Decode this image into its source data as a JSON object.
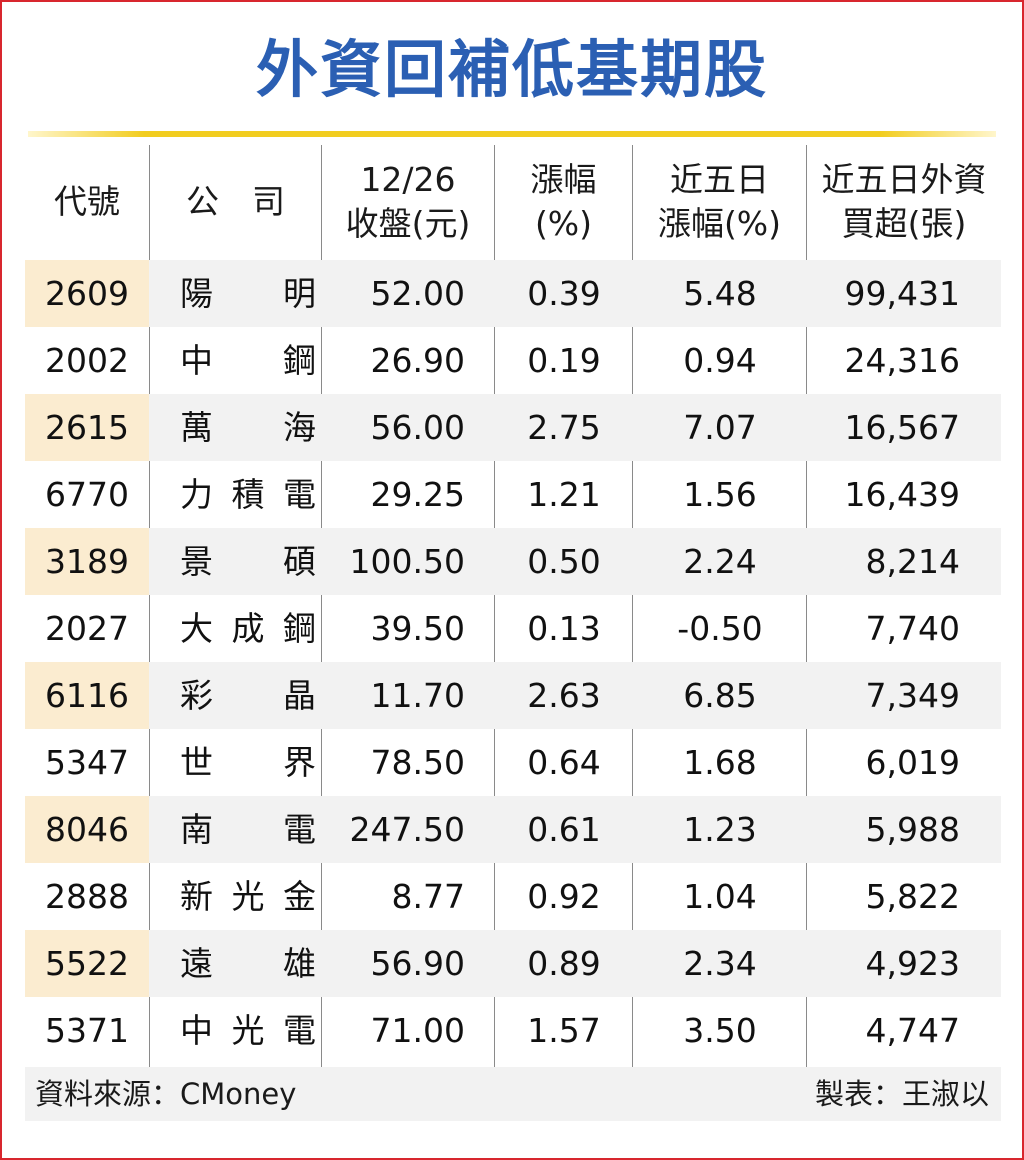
{
  "title": "外資回補低基期股",
  "headers": {
    "code": "代號",
    "name": "公　司",
    "close_l1": "12/26",
    "close_l2": "收盤(元)",
    "chg_l1": "漲幅",
    "chg_l2": "(%)",
    "chg5_l1": "近五日",
    "chg5_l2": "漲幅(%)",
    "buy_l1": "近五日外資",
    "buy_l2": "買超(張)"
  },
  "rows": [
    {
      "code": "2609",
      "name": "陽　明",
      "close": "52.00",
      "chg": "0.39",
      "chg5": "5.48",
      "buy": "99,431"
    },
    {
      "code": "2002",
      "name": "中　鋼",
      "close": "26.90",
      "chg": "0.19",
      "chg5": "0.94",
      "buy": "24,316"
    },
    {
      "code": "2615",
      "name": "萬　海",
      "close": "56.00",
      "chg": "2.75",
      "chg5": "7.07",
      "buy": "16,567"
    },
    {
      "code": "6770",
      "name": "力積電",
      "close": "29.25",
      "chg": "1.21",
      "chg5": "1.56",
      "buy": "16,439"
    },
    {
      "code": "3189",
      "name": "景　碩",
      "close": "100.50",
      "chg": "0.50",
      "chg5": "2.24",
      "buy": "8,214"
    },
    {
      "code": "2027",
      "name": "大成鋼",
      "close": "39.50",
      "chg": "0.13",
      "chg5": "-0.50",
      "buy": "7,740"
    },
    {
      "code": "6116",
      "name": "彩　晶",
      "close": "11.70",
      "chg": "2.63",
      "chg5": "6.85",
      "buy": "7,349"
    },
    {
      "code": "5347",
      "name": "世　界",
      "close": "78.50",
      "chg": "0.64",
      "chg5": "1.68",
      "buy": "6,019"
    },
    {
      "code": "8046",
      "name": "南　電",
      "close": "247.50",
      "chg": "0.61",
      "chg5": "1.23",
      "buy": "5,988"
    },
    {
      "code": "2888",
      "name": "新光金",
      "close": "8.77",
      "chg": "0.92",
      "chg5": "1.04",
      "buy": "5,822"
    },
    {
      "code": "5522",
      "name": "遠　雄",
      "close": "56.90",
      "chg": "0.89",
      "chg5": "2.34",
      "buy": "4,923"
    },
    {
      "code": "5371",
      "name": "中光電",
      "close": "71.00",
      "chg": "1.57",
      "chg5": "3.50",
      "buy": "4,747"
    }
  ],
  "footer": {
    "source": "資料來源：CMoney",
    "credit": "製表：王淑以"
  },
  "colors": {
    "title": "#2b5fb3",
    "border": "#d8262e",
    "rule": "#f2cd1f",
    "code_highlight": "#fbecd0",
    "row_alt": "#f2f2f2"
  }
}
